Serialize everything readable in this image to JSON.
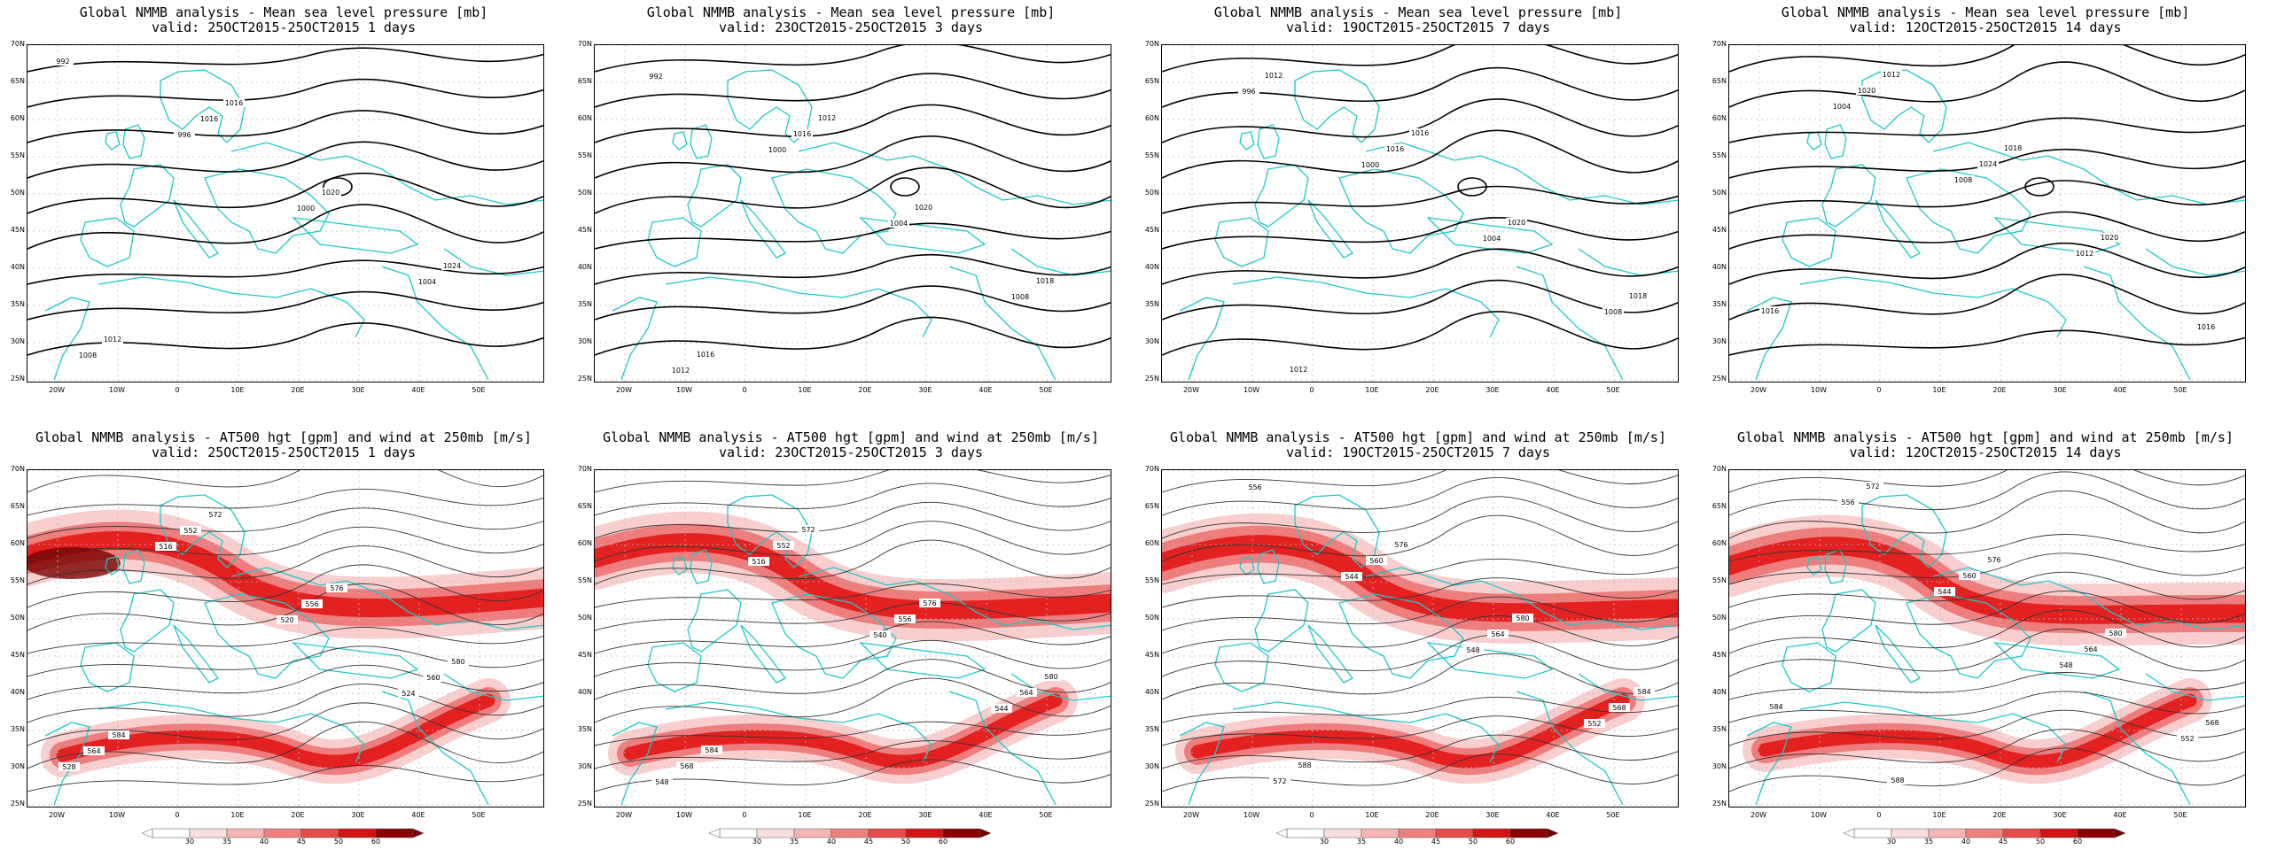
{
  "colors": {
    "coast": "#20c8c8",
    "contour_heavy": "#000000",
    "contour_light": "#333333",
    "wind_light": "#f7c6c6",
    "wind_mid": "#ec6f6f",
    "wind_strong": "#e01010",
    "wind_max": "#7a0000"
  },
  "latitude_labels": [
    "70N",
    "65N",
    "60N",
    "55N",
    "50N",
    "45N",
    "40N",
    "35N",
    "30N",
    "25N"
  ],
  "longitude_labels": [
    "20W",
    "10W",
    "0",
    "10E",
    "20E",
    "30E",
    "40E",
    "50E"
  ],
  "colorbar_ticks": [
    "30",
    "35",
    "40",
    "45",
    "50",
    "60"
  ],
  "panels": [
    {
      "row": "mslp",
      "title": "Global NMMB analysis - Mean sea level pressure [mb]",
      "valid": "valid: 25OCT2015-25OCT2015   1 days",
      "labels": [
        {
          "t": "992"
        },
        {
          "t": "996"
        },
        {
          "t": "1000"
        },
        {
          "t": "1004"
        },
        {
          "t": "1008"
        },
        {
          "t": "1016"
        },
        {
          "t": "1020"
        },
        {
          "t": "1024"
        },
        {
          "t": "1012"
        },
        {
          "t": "1016"
        }
      ]
    },
    {
      "row": "mslp",
      "title": "Global NMMB analysis - Mean sea level pressure [mb]",
      "valid": "valid: 23OCT2015-25OCT2015   3 days",
      "labels": [
        {
          "t": "992"
        },
        {
          "t": "1000"
        },
        {
          "t": "1004"
        },
        {
          "t": "1008"
        },
        {
          "t": "1012"
        },
        {
          "t": "1016"
        },
        {
          "t": "1020"
        },
        {
          "t": "1018"
        },
        {
          "t": "1016"
        },
        {
          "t": "1012"
        }
      ]
    },
    {
      "row": "mslp",
      "title": "Global NMMB analysis - Mean sea level pressure [mb]",
      "valid": "valid: 19OCT2015-25OCT2015   7 days",
      "labels": [
        {
          "t": "996"
        },
        {
          "t": "1000"
        },
        {
          "t": "1004"
        },
        {
          "t": "1008"
        },
        {
          "t": "1012"
        },
        {
          "t": "1016"
        },
        {
          "t": "1020"
        },
        {
          "t": "1018"
        },
        {
          "t": "1012"
        },
        {
          "t": "1016"
        }
      ]
    },
    {
      "row": "mslp",
      "title": "Global NMMB analysis - Mean sea level pressure [mb]",
      "valid": "valid: 12OCT2015-25OCT2015  14 days",
      "labels": [
        {
          "t": "1004"
        },
        {
          "t": "1008"
        },
        {
          "t": "1012"
        },
        {
          "t": "1016"
        },
        {
          "t": "1020"
        },
        {
          "t": "1024"
        },
        {
          "t": "1020"
        },
        {
          "t": "1016"
        },
        {
          "t": "1012"
        },
        {
          "t": "1018"
        }
      ]
    },
    {
      "row": "z500",
      "title": "Global NMMB analysis - AT500 hgt [gpm] and wind at 250mb [m/s]",
      "valid": "valid: 25OCT2015-25OCT2015   1 days",
      "labels": [
        {
          "t": "516"
        },
        {
          "t": "520"
        },
        {
          "t": "524"
        },
        {
          "t": "528"
        },
        {
          "t": "552"
        },
        {
          "t": "556"
        },
        {
          "t": "560"
        },
        {
          "t": "564"
        },
        {
          "t": "572"
        },
        {
          "t": "576"
        },
        {
          "t": "580"
        },
        {
          "t": "584"
        }
      ]
    },
    {
      "row": "z500",
      "title": "Global NMMB analysis - AT500 hgt [gpm] and wind at 250mb [m/s]",
      "valid": "valid: 23OCT2015-25OCT2015   3 days",
      "labels": [
        {
          "t": "516"
        },
        {
          "t": "540"
        },
        {
          "t": "544"
        },
        {
          "t": "548"
        },
        {
          "t": "552"
        },
        {
          "t": "556"
        },
        {
          "t": "564"
        },
        {
          "t": "568"
        },
        {
          "t": "572"
        },
        {
          "t": "576"
        },
        {
          "t": "580"
        },
        {
          "t": "584"
        }
      ]
    },
    {
      "row": "z500",
      "title": "Global NMMB analysis - AT500 hgt [gpm] and wind at 250mb [m/s]",
      "valid": "valid: 19OCT2015-25OCT2015   7 days",
      "labels": [
        {
          "t": "544"
        },
        {
          "t": "548"
        },
        {
          "t": "552"
        },
        {
          "t": "556"
        },
        {
          "t": "560"
        },
        {
          "t": "564"
        },
        {
          "t": "568"
        },
        {
          "t": "572"
        },
        {
          "t": "576"
        },
        {
          "t": "580"
        },
        {
          "t": "584"
        },
        {
          "t": "588"
        }
      ]
    },
    {
      "row": "z500",
      "title": "Global NMMB analysis - AT500 hgt [gpm] and wind at 250mb [m/s]",
      "valid": "valid: 12OCT2015-25OCT2015  14 days",
      "labels": [
        {
          "t": "544"
        },
        {
          "t": "548"
        },
        {
          "t": "552"
        },
        {
          "t": "556"
        },
        {
          "t": "560"
        },
        {
          "t": "564"
        },
        {
          "t": "568"
        },
        {
          "t": "572"
        },
        {
          "t": "576"
        },
        {
          "t": "580"
        },
        {
          "t": "584"
        },
        {
          "t": "588"
        }
      ]
    }
  ]
}
